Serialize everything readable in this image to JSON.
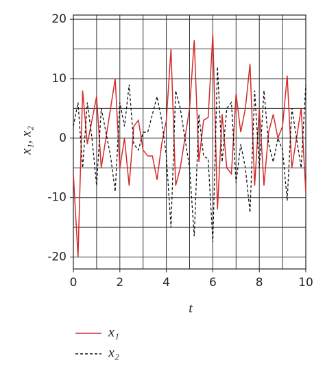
{
  "chart_data": {
    "type": "line",
    "x_label": "t",
    "y_label": "x₁, x₂",
    "x": [
      0,
      0.2,
      0.4,
      0.6,
      0.8,
      1.0,
      1.2,
      1.4,
      1.6,
      1.8,
      2.0,
      2.2,
      2.4,
      2.6,
      2.8,
      3.0,
      3.2,
      3.4,
      3.6,
      3.8,
      4.0,
      4.2,
      4.4,
      4.6,
      4.8,
      5.0,
      5.2,
      5.4,
      5.6,
      5.8,
      6.0,
      6.2,
      6.4,
      6.6,
      6.8,
      7.0,
      7.2,
      7.4,
      7.6,
      7.8,
      8.0,
      8.2,
      8.4,
      8.6,
      8.8,
      9.0,
      9.2,
      9.4,
      9.6,
      9.8,
      10.0
    ],
    "series": [
      {
        "name": "x₁",
        "color": "#d42a2a",
        "dash": false,
        "values": [
          -6,
          -20,
          8,
          -1,
          3,
          7,
          -5,
          0,
          5,
          10,
          -5,
          0,
          -8,
          2,
          3,
          -2,
          -3,
          -3,
          -7,
          -1,
          3,
          15,
          -8,
          -5,
          0,
          5,
          16.5,
          -4,
          3,
          3.5,
          17.5,
          -12,
          4,
          -5,
          -6,
          7.5,
          1,
          5,
          12.5,
          -8,
          5,
          -8,
          1,
          4,
          0,
          2,
          10.5,
          -5,
          0,
          5,
          -9
        ]
      },
      {
        "name": "x₂",
        "color": "#111111",
        "dash": true,
        "values": [
          2,
          6,
          -5,
          6,
          0,
          -8,
          5,
          1,
          -3,
          -9,
          6,
          2,
          9,
          -1,
          -2,
          1,
          1,
          4,
          7,
          3,
          -3,
          -15,
          8,
          5,
          0,
          -5,
          -16.5,
          4,
          -3,
          -3.5,
          -17.5,
          12,
          -4,
          5,
          6,
          -7.5,
          -1,
          -5,
          -12.5,
          8,
          -5,
          8,
          -1,
          -4,
          0,
          -2,
          -10.5,
          5,
          0,
          -5,
          9
        ]
      }
    ],
    "xlim": [
      0,
      10
    ],
    "ylim": [
      -22,
      20.7
    ],
    "xticks": [
      0,
      2,
      4,
      6,
      8,
      10
    ],
    "yticks": [
      -20,
      -10,
      0,
      10,
      20
    ],
    "xgrid": [
      0,
      1,
      2,
      3,
      4,
      5,
      6,
      7,
      8,
      9,
      10
    ],
    "ygrid": [
      -20,
      -15,
      -10,
      -5,
      0,
      5,
      10,
      15,
      20
    ],
    "grid": true
  }
}
